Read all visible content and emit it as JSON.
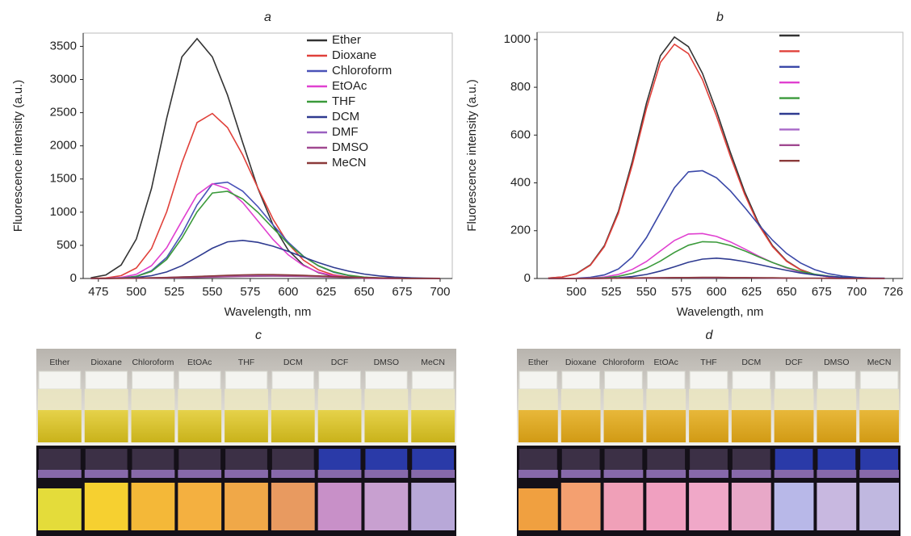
{
  "chart_data": [
    {
      "type": "line",
      "title": "a",
      "xlabel": "Wavelength, nm",
      "ylabel": "Fluorescence intensity (a.u.)",
      "x": [
        470,
        480,
        490,
        500,
        510,
        520,
        530,
        540,
        550,
        560,
        570,
        580,
        590,
        600,
        610,
        620,
        630,
        640,
        650,
        660,
        670,
        680,
        690,
        700
      ],
      "xlim": [
        465,
        708
      ],
      "xticks": [
        475,
        500,
        525,
        550,
        575,
        600,
        625,
        650,
        675,
        700
      ],
      "ylim": [
        0,
        3700
      ],
      "yticks": [
        0,
        500,
        1000,
        1500,
        2000,
        2500,
        3000,
        3500
      ],
      "series": [
        {
          "name": "Ether",
          "color": "#333333",
          "values": [
            11,
            54,
            203,
            595,
            1358,
            2415,
            3341,
            3616,
            3341,
            2766,
            2049,
            1358,
            806,
            427,
            203,
            86,
            33,
            11,
            3,
            1,
            0,
            0,
            0,
            0
          ]
        },
        {
          "name": "Dioxane",
          "color": "#e0403a",
          "values": [
            2,
            9,
            43,
            158,
            452,
            1005,
            1742,
            2352,
            2488,
            2276,
            1863,
            1365,
            895,
            525,
            276,
            129,
            54,
            21,
            7,
            2,
            0,
            0,
            0,
            0
          ]
        },
        {
          "name": "Chloroform",
          "color": "#4a52b8",
          "values": [
            0,
            1,
            7,
            34,
            117,
            318,
            673,
            1110,
            1425,
            1452,
            1317,
            1083,
            808,
            547,
            336,
            187,
            94,
            43,
            18,
            7,
            2,
            0,
            0,
            0
          ]
        },
        {
          "name": "EtOAc",
          "color": "#e040d0",
          "values": [
            0,
            3,
            16,
            63,
            194,
            464,
            868,
            1262,
            1430,
            1352,
            1145,
            868,
            588,
            357,
            194,
            94,
            41,
            16,
            6,
            2,
            0,
            0,
            0,
            0
          ]
        },
        {
          "name": "THF",
          "color": "#3a9a3a",
          "values": [
            0,
            1,
            7,
            30,
            106,
            287,
            609,
            1004,
            1289,
            1315,
            1200,
            998,
            758,
            525,
            332,
            191,
            101,
            48,
            21,
            8,
            3,
            1,
            0,
            0
          ]
        },
        {
          "name": "DCM",
          "color": "#2e3a90",
          "values": [
            0,
            1,
            5,
            16,
            43,
            98,
            192,
            321,
            456,
            553,
            575,
            545,
            487,
            409,
            323,
            239,
            166,
            109,
            67,
            39,
            21,
            11,
            5,
            2
          ]
        },
        {
          "name": "DMF",
          "color": "#9a60c0",
          "values": [
            1,
            2,
            4,
            7,
            11,
            16,
            23,
            30,
            38,
            44,
            48,
            50,
            48,
            44,
            38,
            30,
            23,
            16,
            11,
            7,
            4,
            2,
            1,
            1
          ]
        },
        {
          "name": "DMSO",
          "color": "#a04890",
          "values": [
            0,
            1,
            2,
            3,
            5,
            8,
            11,
            16,
            21,
            27,
            31,
            34,
            35,
            34,
            31,
            27,
            21,
            16,
            11,
            8,
            5,
            3,
            2,
            1
          ]
        },
        {
          "name": "MeCN",
          "color": "#8b3a3a",
          "values": [
            1,
            2,
            3,
            6,
            10,
            15,
            22,
            30,
            39,
            47,
            54,
            59,
            59,
            54,
            47,
            39,
            30,
            22,
            15,
            10,
            6,
            3,
            2,
            1
          ]
        }
      ]
    },
    {
      "type": "line",
      "title": "b",
      "xlabel": "Wavelength, nm",
      "ylabel": "Fluorescence intensity (a.u.)",
      "x": [
        480,
        490,
        500,
        510,
        520,
        530,
        540,
        550,
        560,
        570,
        580,
        590,
        600,
        610,
        620,
        630,
        640,
        650,
        660,
        670,
        680,
        690,
        700,
        710,
        720
      ],
      "xlim": [
        472,
        733
      ],
      "xticks": [
        500,
        525,
        550,
        575,
        600,
        625,
        650,
        675,
        700,
        726
      ],
      "ylim": [
        0,
        1030
      ],
      "yticks": [
        0,
        200,
        400,
        600,
        800,
        1000
      ],
      "series": [
        {
          "color": "#333333",
          "values": [
            2,
            6,
            20,
            57,
            137,
            281,
            491,
            733,
            932,
            1010,
            970,
            858,
            700,
            526,
            364,
            232,
            137,
            74,
            37,
            17,
            7,
            3,
            1,
            0,
            0
          ]
        },
        {
          "color": "#e0403a",
          "values": [
            2,
            6,
            19,
            55,
            133,
            273,
            476,
            711,
            904,
            980,
            941,
            832,
            679,
            510,
            353,
            225,
            133,
            72,
            36,
            16,
            7,
            3,
            1,
            0,
            0
          ]
        },
        {
          "color": "#3a48a8",
          "values": [
            0,
            0,
            1,
            5,
            15,
            40,
            90,
            171,
            276,
            380,
            446,
            451,
            421,
            366,
            298,
            226,
            160,
            105,
            65,
            37,
            20,
            10,
            5,
            2,
            1
          ]
        },
        {
          "color": "#e040d0",
          "values": [
            0,
            0,
            0,
            2,
            6,
            17,
            38,
            71,
            115,
            159,
            186,
            188,
            176,
            153,
            124,
            94,
            67,
            44,
            27,
            15,
            8,
            4,
            2,
            1,
            0
          ]
        },
        {
          "color": "#3a9a3a",
          "values": [
            0,
            0,
            0,
            1,
            3,
            9,
            22,
            43,
            73,
            109,
            139,
            154,
            152,
            138,
            116,
            91,
            67,
            46,
            30,
            18,
            10,
            5,
            3,
            1,
            0
          ]
        },
        {
          "color": "#2e3a90",
          "values": [
            0,
            0,
            0,
            0,
            1,
            3,
            8,
            17,
            31,
            49,
            68,
            81,
            85,
            80,
            71,
            59,
            46,
            34,
            23,
            15,
            9,
            5,
            3,
            1,
            1
          ]
        },
        {
          "color": "#a868c8",
          "values": [
            0,
            0,
            0,
            0,
            1,
            1,
            2,
            2,
            3,
            3,
            4,
            4,
            4,
            4,
            3,
            3,
            2,
            2,
            1,
            1,
            1,
            0,
            0,
            0,
            0
          ]
        },
        {
          "color": "#a04890",
          "values": [
            0,
            0,
            0,
            0,
            0,
            1,
            1,
            2,
            2,
            3,
            3,
            3,
            3,
            3,
            3,
            2,
            2,
            1,
            1,
            1,
            0,
            0,
            0,
            0,
            0
          ]
        },
        {
          "color": "#8b3a3a",
          "values": [
            0,
            0,
            0,
            0,
            1,
            1,
            2,
            3,
            3,
            4,
            4,
            5,
            5,
            4,
            4,
            3,
            3,
            2,
            1,
            1,
            1,
            0,
            0,
            0,
            0
          ]
        }
      ]
    }
  ],
  "photos": [
    {
      "label": "c",
      "vials": [
        "Ether",
        "Dioxane",
        "Chloroform",
        "EtOAc",
        "THF",
        "DCM",
        "DCF",
        "DMSO",
        "MeCN"
      ]
    },
    {
      "label": "d",
      "vials": [
        "Ether",
        "Dioxane",
        "Chloroform",
        "EtOAc",
        "THF",
        "DCM",
        "DCF",
        "DMSO",
        "MeCN"
      ]
    }
  ]
}
